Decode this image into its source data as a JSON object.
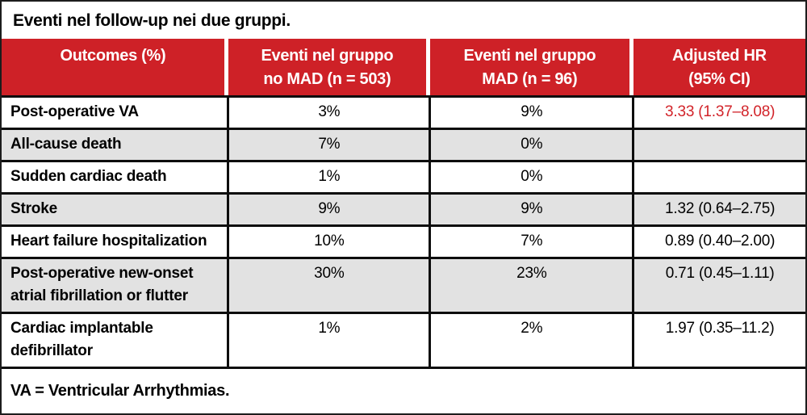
{
  "title": "Eventi nel follow-up nei due gruppi.",
  "colors": {
    "header_red": "#CE2127",
    "row_gray": "#E2E2E2",
    "hr_red": "#D22329"
  },
  "table": {
    "headers": [
      {
        "line1": "Outcomes (%)",
        "line2": ""
      },
      {
        "line1": "Eventi nel gruppo",
        "line2": "no MAD (n = 503)"
      },
      {
        "line1": "Eventi nel gruppo",
        "line2": "MAD (n = 96)"
      },
      {
        "line1": "Adjusted HR",
        "line2": "(95% CI)"
      }
    ],
    "rows": [
      {
        "outcome": "Post-operative VA",
        "no_mad": "3%",
        "mad": "9%",
        "hr": "3.33 (1.37–8.08)"
      },
      {
        "outcome": "All-cause death",
        "no_mad": "7%",
        "mad": "0%",
        "hr": ""
      },
      {
        "outcome": "Sudden cardiac death",
        "no_mad": "1%",
        "mad": "0%",
        "hr": ""
      },
      {
        "outcome": "Stroke",
        "no_mad": "9%",
        "mad": "9%",
        "hr": "1.32 (0.64–2.75)"
      },
      {
        "outcome": "Heart failure hospitalization",
        "no_mad": "10%",
        "mad": "7%",
        "hr": "0.89 (0.40–2.00)"
      },
      {
        "outcome": "Post-operative new-onset atrial fibrillation or flutter",
        "no_mad": "30%",
        "mad": "23%",
        "hr": "0.71 (0.45–1.11)"
      },
      {
        "outcome": "Cardiac implantable defibrillator",
        "no_mad": "1%",
        "mad": "2%",
        "hr": "1.97 (0.35–11.2)"
      }
    ]
  },
  "footnote": "VA = Ventricular Arrhythmias."
}
